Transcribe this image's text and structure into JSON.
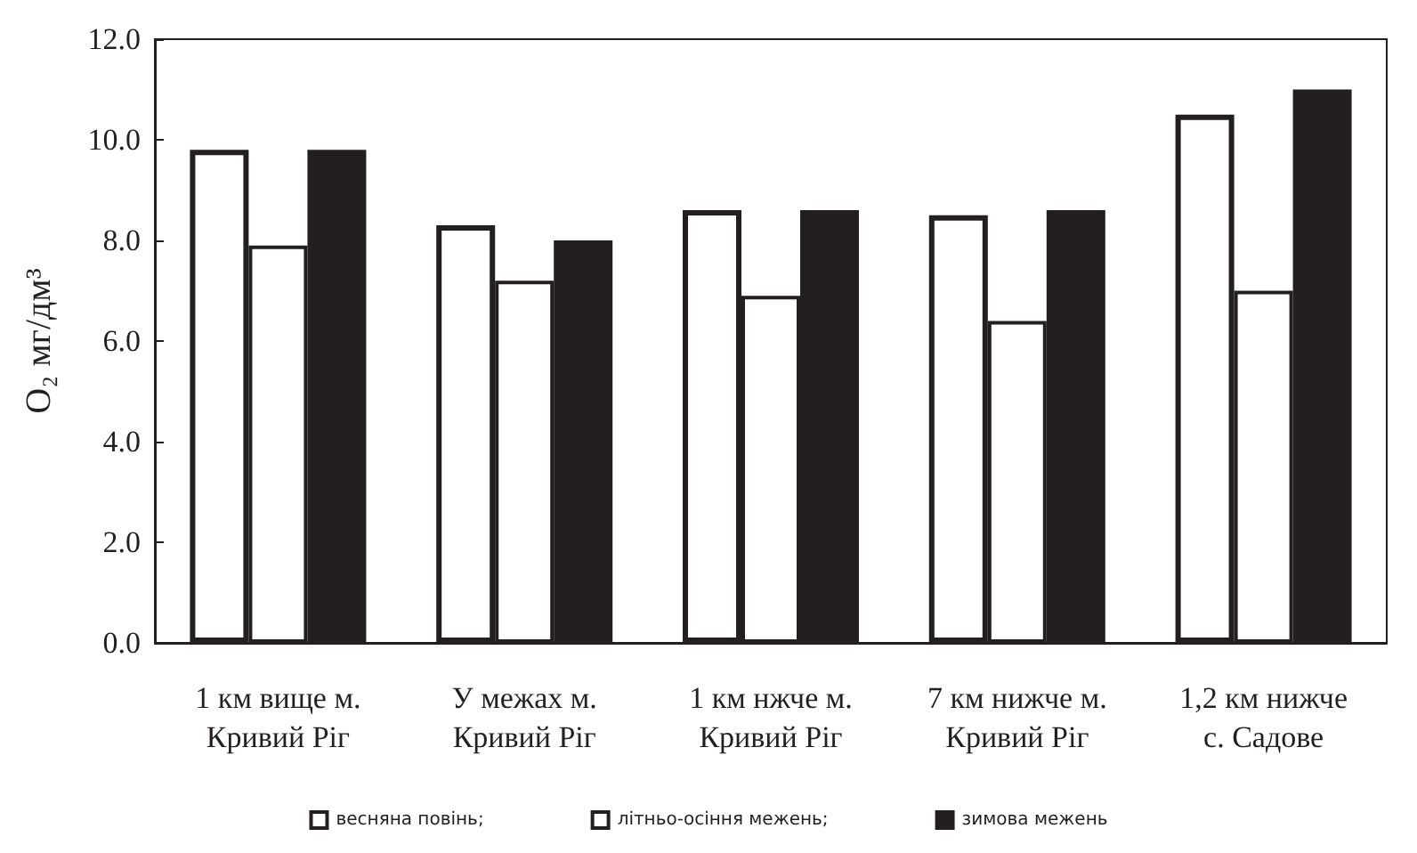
{
  "chart_data": {
    "type": "bar",
    "ylabel": "O₂ мг/дм³",
    "categories": [
      "1 км вище м.\nКривий Ріг",
      "У межах м.\nКривий Ріг",
      "1 км нжче м.\nКривий Ріг",
      "7 км нижче м.\nКривий Ріг",
      "1,2 км нижче\nс. Садове"
    ],
    "series": [
      {
        "name": "весняна повінь;",
        "color": "#ffffff",
        "values": [
          9.8,
          8.3,
          8.6,
          8.5,
          10.5
        ]
      },
      {
        "name": "літньо-осіння межень;",
        "color": "#ffffff",
        "values": [
          7.9,
          7.2,
          6.9,
          6.4,
          7.0
        ]
      },
      {
        "name": "зимова межень",
        "color": "#231f20",
        "values": [
          9.8,
          8.0,
          8.6,
          8.6,
          11.0
        ]
      }
    ],
    "ylim": [
      0,
      12
    ],
    "yticks": [
      {
        "value": 0,
        "label": "0.0"
      },
      {
        "value": 2,
        "label": "2.0"
      },
      {
        "value": 4,
        "label": "4.0"
      },
      {
        "value": 6,
        "label": "6.0"
      },
      {
        "value": 8,
        "label": "8.0"
      },
      {
        "value": 10,
        "label": "10.0"
      },
      {
        "value": 12,
        "label": "12.0"
      }
    ],
    "grid": false,
    "legend": "bottom"
  }
}
